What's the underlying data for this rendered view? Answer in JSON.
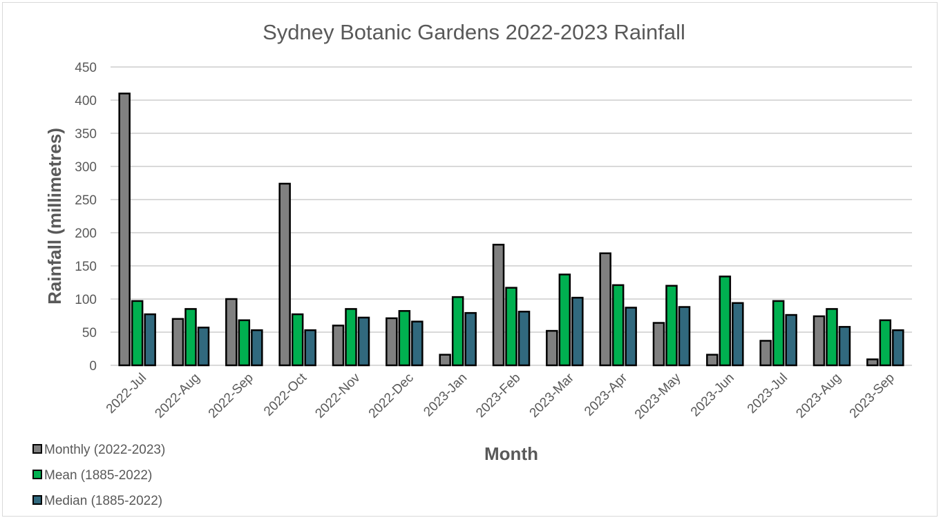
{
  "chart_data": {
    "type": "bar",
    "title": "Sydney Botanic Gardens 2022-2023 Rainfall",
    "xlabel": "Month",
    "ylabel": "Rainfall (millimetres)",
    "ylim": [
      0,
      450
    ],
    "yticks": [
      0,
      50,
      100,
      150,
      200,
      250,
      300,
      350,
      400,
      450
    ],
    "grid": true,
    "legend_position": "bottom-left",
    "categories": [
      "2022-Jul",
      "2022-Aug",
      "2022-Sep",
      "2022-Oct",
      "2022-Nov",
      "2022-Dec",
      "2023-Jan",
      "2023-Feb",
      "2023-Mar",
      "2023-Apr",
      "2023-May",
      "2023-Jun",
      "2023-Jul",
      "2023-Aug",
      "2023-Sep"
    ],
    "series": [
      {
        "name": "Monthly (2022-2023)",
        "color": "#808080",
        "values": [
          410,
          70,
          100,
          274,
          60,
          71,
          16,
          182,
          52,
          169,
          64,
          16,
          37,
          74,
          9
        ]
      },
      {
        "name": "Mean (1885-2022)",
        "color": "#00b050",
        "values": [
          97,
          85,
          68,
          77,
          85,
          82,
          103,
          117,
          137,
          121,
          120,
          134,
          97,
          85,
          68
        ]
      },
      {
        "name": "Median (1885-2022)",
        "color": "#31697e",
        "values": [
          77,
          57,
          53,
          53,
          72,
          66,
          79,
          81,
          102,
          87,
          88,
          94,
          76,
          58,
          53
        ]
      }
    ]
  }
}
